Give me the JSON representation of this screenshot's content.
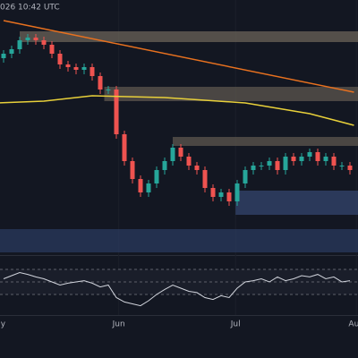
{
  "chart_data": {
    "type": "candlestick",
    "timestamp": "026 10:42 UTC",
    "ylim": [
      0,
      285
    ],
    "up_color": "#26a69a",
    "down_color": "#ef5350",
    "open": [
      220,
      225,
      230,
      240,
      243,
      240,
      235,
      225,
      213,
      210,
      207,
      210,
      200,
      185,
      185,
      135,
      105,
      85,
      70,
      80,
      95,
      105,
      120,
      110,
      100,
      95,
      75,
      65,
      70,
      60,
      80,
      95,
      100,
      100,
      105,
      95,
      110,
      105,
      110,
      115,
      105,
      110,
      100,
      100
    ],
    "high": [
      229,
      234,
      244,
      247,
      247,
      244,
      239,
      229,
      217,
      214,
      214,
      214,
      204,
      189,
      189,
      139,
      109,
      89,
      84,
      99,
      109,
      124,
      124,
      114,
      104,
      99,
      79,
      74,
      74,
      84,
      99,
      104,
      104,
      109,
      109,
      114,
      114,
      114,
      119,
      119,
      114,
      114,
      104,
      104
    ],
    "low": [
      215,
      220,
      225,
      235,
      235,
      230,
      220,
      208,
      205,
      202,
      202,
      195,
      180,
      180,
      130,
      100,
      80,
      65,
      65,
      75,
      90,
      100,
      105,
      95,
      90,
      70,
      60,
      60,
      55,
      55,
      75,
      90,
      95,
      95,
      90,
      90,
      100,
      100,
      105,
      100,
      100,
      95,
      95,
      90
    ],
    "close": [
      225,
      230,
      240,
      243,
      240,
      235,
      225,
      213,
      210,
      207,
      210,
      200,
      185,
      185,
      135,
      105,
      85,
      70,
      80,
      95,
      105,
      120,
      110,
      100,
      95,
      75,
      65,
      70,
      60,
      80,
      95,
      100,
      100,
      105,
      95,
      110,
      105,
      110,
      115,
      105,
      110,
      100,
      100,
      95
    ],
    "zones": [
      {
        "from": 2,
        "low": 238,
        "high": 250,
        "color": "#6b6358"
      },
      {
        "from": 12.5,
        "low": 172,
        "high": 188,
        "color": "#5e574f"
      },
      {
        "from": 21,
        "low": 122,
        "high": 132,
        "color": "#5e574f"
      },
      {
        "from": 28.8,
        "low": 45,
        "high": 72,
        "color": "#34466e"
      },
      {
        "from": -1,
        "low": 3,
        "high": 29,
        "color": "#2a3a5e"
      }
    ],
    "lines": [
      {
        "color": "#e8711f",
        "x": [
          0,
          43.5
        ],
        "values": [
          262,
          182
        ]
      },
      {
        "color": "#e8d03a",
        "x": [
          -1,
          5,
          11,
          20,
          30,
          38,
          43.5
        ],
        "values": [
          170,
          172,
          178,
          176,
          170,
          158,
          145
        ]
      }
    ],
    "rsi": {
      "ylim": [
        0,
        100
      ],
      "levels": [
        70,
        50,
        30
      ],
      "color": "#d1d4dc",
      "values": [
        55,
        60,
        65,
        62,
        58,
        55,
        50,
        45,
        48,
        50,
        52,
        48,
        42,
        45,
        25,
        18,
        15,
        12,
        20,
        30,
        38,
        45,
        40,
        35,
        33,
        25,
        22,
        28,
        25,
        40,
        50,
        52,
        55,
        50,
        58,
        52,
        55,
        60,
        58,
        62,
        55,
        58,
        50,
        52
      ]
    },
    "xticks": [
      {
        "value": -0.8,
        "label": "May"
      },
      {
        "value": 14.3,
        "label": "Jun"
      },
      {
        "value": 28.8,
        "label": "Jul"
      },
      {
        "value": 43.8,
        "label": "Aug"
      }
    ]
  }
}
